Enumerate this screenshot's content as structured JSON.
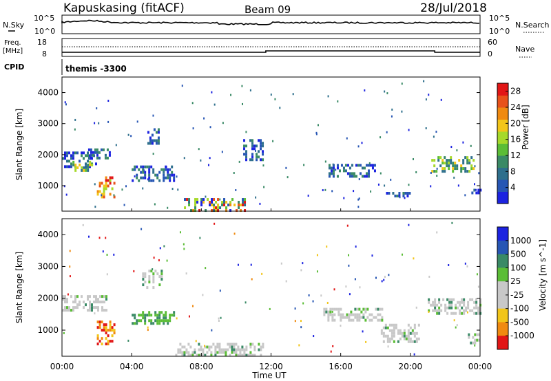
{
  "header": {
    "station": "Kapuskasing (fitACF)",
    "beam": "Beam 09",
    "date": "28/Jul/2018"
  },
  "noise_panel": {
    "left_label": "N.Sky",
    "right_label": "N.Search",
    "tick_top": "10^5",
    "tick_bottom": "10^0",
    "right_tick_top": "10^5",
    "right_tick_bottom": "10^0"
  },
  "freq_panel": {
    "left_label_1": "Freq.",
    "left_label_2": "[MHz]",
    "right_label": "Nave",
    "left_ticks": [
      "18",
      "8"
    ],
    "right_ticks": [
      "60",
      "0"
    ]
  },
  "cpid": {
    "label": "CPID",
    "value": "themis -3300"
  },
  "colors": {
    "ground_scatter": "#c8c8c8",
    "power_scale": [
      "#1c23e0",
      "#2756b4",
      "#2e6f8c",
      "#3a8a66",
      "#5bbd36",
      "#a6d92a",
      "#f2c519",
      "#f08a10",
      "#e8521a",
      "#e21616"
    ],
    "velocity_scale": [
      "#e21616",
      "#f08a10",
      "#f2c519",
      "#c8c8c8",
      "#c8c8c8",
      "#5bbd36",
      "#3a8a66",
      "#2756b4",
      "#1c23e0"
    ]
  },
  "chart_data": [
    {
      "type": "heatmap",
      "panel": "power",
      "ylabel": "Slant Range [km]",
      "y_ticks": [
        "1000",
        "2000",
        "3000",
        "4000"
      ],
      "ylim": [
        180,
        4500
      ],
      "x_ticks": [
        "00:00",
        "04:00",
        "08:00",
        "12:00",
        "16:00",
        "20:00",
        "00:00"
      ],
      "xlim": [
        0,
        24
      ],
      "colorbar_label": "Power [dB]",
      "colorbar_ticks": [
        "4",
        "8",
        "12",
        "16",
        "20",
        "24",
        "28"
      ],
      "colorbar_range": [
        0,
        30
      ],
      "regions": [
        {
          "t": [
            0.0,
            1.9
          ],
          "r": [
            1650,
            2100
          ],
          "level": "low"
        },
        {
          "t": [
            0.6,
            1.8
          ],
          "r": [
            1500,
            1800
          ],
          "level": "mid"
        },
        {
          "t": [
            1.5,
            2.7
          ],
          "r": [
            1900,
            2200
          ],
          "level": "low"
        },
        {
          "t": [
            2.0,
            3.0
          ],
          "r": [
            600,
            1300
          ],
          "level": "high"
        },
        {
          "t": [
            4.9,
            5.6
          ],
          "r": [
            2350,
            2850
          ],
          "level": "low"
        },
        {
          "t": [
            4.0,
            6.4
          ],
          "r": [
            1200,
            1650
          ],
          "level": "low"
        },
        {
          "t": [
            7.0,
            10.5
          ],
          "r": [
            180,
            600
          ],
          "level": "mixed"
        },
        {
          "t": [
            10.4,
            11.5
          ],
          "r": [
            1800,
            2500
          ],
          "level": "low"
        },
        {
          "t": [
            15.3,
            18.0
          ],
          "r": [
            1300,
            1700
          ],
          "level": "low"
        },
        {
          "t": [
            18.6,
            20.0
          ],
          "r": [
            650,
            800
          ],
          "level": "low"
        },
        {
          "t": [
            21.2,
            23.6
          ],
          "r": [
            1500,
            1950
          ],
          "level": "mid"
        },
        {
          "t": [
            23.5,
            24.0
          ],
          "r": [
            700,
            900
          ],
          "level": "low"
        }
      ]
    },
    {
      "type": "heatmap",
      "panel": "velocity",
      "ylabel": "Slant Range [km]",
      "y_ticks": [
        "1000",
        "2000",
        "3000",
        "4000"
      ],
      "ylim": [
        180,
        4500
      ],
      "x_ticks": [
        "00:00",
        "04:00",
        "08:00",
        "12:00",
        "16:00",
        "20:00",
        "00:00"
      ],
      "xlim": [
        0,
        24
      ],
      "xlabel": "Time UT",
      "colorbar_label": "Velocity [m s^-1]",
      "colorbar_ticks": [
        "1000",
        "500",
        "100",
        "25",
        "-25",
        "-100",
        "-500",
        "-1000"
      ],
      "regions": [
        {
          "t": [
            0.0,
            2.6
          ],
          "r": [
            1600,
            2100
          ],
          "kind": "ground"
        },
        {
          "t": [
            2.0,
            3.0
          ],
          "r": [
            600,
            1300
          ],
          "kind": "negative"
        },
        {
          "t": [
            4.6,
            5.7
          ],
          "r": [
            2350,
            2900
          ],
          "kind": "ground"
        },
        {
          "t": [
            4.0,
            6.4
          ],
          "r": [
            1200,
            1600
          ],
          "kind": "positive"
        },
        {
          "t": [
            6.5,
            11.5
          ],
          "r": [
            180,
            600
          ],
          "kind": "ground"
        },
        {
          "t": [
            15.0,
            18.5
          ],
          "r": [
            1300,
            1700
          ],
          "kind": "ground"
        },
        {
          "t": [
            18.3,
            20.5
          ],
          "r": [
            600,
            1200
          ],
          "kind": "ground"
        },
        {
          "t": [
            21.0,
            24.0
          ],
          "r": [
            1500,
            2000
          ],
          "kind": "ground"
        },
        {
          "t": [
            23.3,
            24.0
          ],
          "r": [
            600,
            900
          ],
          "kind": "ground"
        }
      ]
    }
  ]
}
